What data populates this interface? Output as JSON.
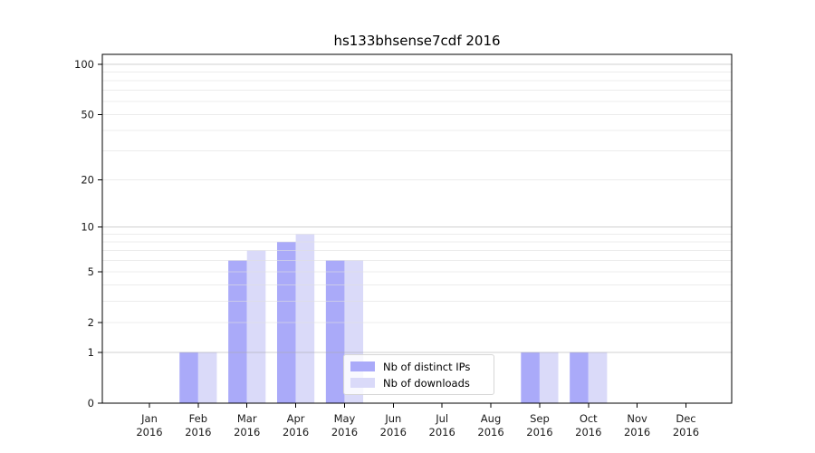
{
  "figure": {
    "background": "#ffffff"
  },
  "chart_data": {
    "type": "bar",
    "title": "hs133bhsense7cdf 2016",
    "categories": [
      "Jan",
      "Feb",
      "Mar",
      "Apr",
      "May",
      "Jun",
      "Jul",
      "Aug",
      "Sep",
      "Oct",
      "Nov",
      "Dec"
    ],
    "year_label": "2016",
    "series": [
      {
        "name": "Nb of distinct IPs",
        "color": "#aaaaf9",
        "values": [
          0,
          1,
          6,
          8,
          6,
          0,
          0,
          0,
          1,
          1,
          0,
          0
        ]
      },
      {
        "name": "Nb of downloads",
        "color": "#dadaf9",
        "values": [
          0,
          1,
          7,
          9,
          6,
          0,
          0,
          0,
          1,
          1,
          0,
          0
        ]
      }
    ],
    "y_scale": "log1p",
    "ylim": [
      0,
      100
    ],
    "y_ticks": [
      0,
      1,
      2,
      5,
      10,
      20,
      50,
      100
    ],
    "y_minor_gridlines": [
      2,
      3,
      4,
      5,
      6,
      7,
      8,
      9,
      20,
      30,
      40,
      50,
      60,
      70,
      80,
      90
    ],
    "y_major_gridlines": [
      1,
      10,
      100
    ],
    "grid": true,
    "legend_position": "inside-bottom-center"
  },
  "colors": {
    "axis_spine": "#000000",
    "tick_label": "#1a1a1a",
    "grid_minor": "#e0e0e0",
    "grid_major": "#aaaaaa",
    "legend_border": "#d6d6d6"
  }
}
